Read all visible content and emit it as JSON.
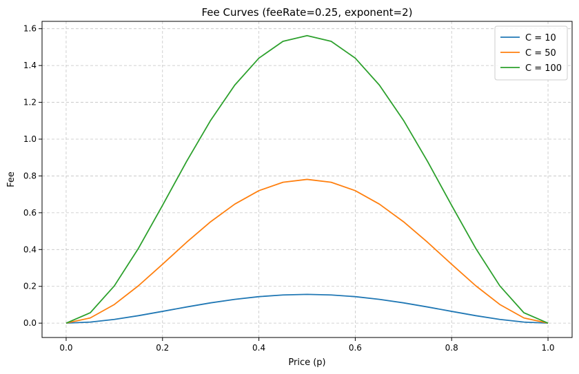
{
  "chart_data": {
    "type": "line",
    "title": "Fee Curves (feeRate=0.25, exponent=2)",
    "xlabel": "Price (p)",
    "ylabel": "Fee",
    "xlim": [
      -0.05,
      1.05
    ],
    "ylim": [
      -0.078,
      1.64
    ],
    "xticks": [
      0.0,
      0.2,
      0.4,
      0.6,
      0.8,
      1.0
    ],
    "xtick_labels": [
      "0.0",
      "0.2",
      "0.4",
      "0.6",
      "0.8",
      "1.0"
    ],
    "yticks": [
      0.0,
      0.2,
      0.4,
      0.6,
      0.8,
      1.0,
      1.2,
      1.4,
      1.6
    ],
    "ytick_labels": [
      "0.0",
      "0.2",
      "0.4",
      "0.6",
      "0.8",
      "1.0",
      "1.2",
      "1.4",
      "1.6"
    ],
    "grid": true,
    "legend_position": "top-right",
    "x": [
      0.0,
      0.05,
      0.1,
      0.15,
      0.2,
      0.25,
      0.3,
      0.35,
      0.4,
      0.45,
      0.5,
      0.55,
      0.6,
      0.65,
      0.7,
      0.75,
      0.8,
      0.85,
      0.9,
      0.95,
      1.0
    ],
    "series": [
      {
        "name": "C = 10",
        "color": "#1f77b4",
        "values": [
          0.0,
          0.0056,
          0.0203,
          0.0406,
          0.064,
          0.0879,
          0.1103,
          0.1294,
          0.144,
          0.1531,
          0.1563,
          0.1531,
          0.144,
          0.1294,
          0.1103,
          0.0879,
          0.064,
          0.0406,
          0.0203,
          0.0056,
          0.0
        ]
      },
      {
        "name": "C = 50",
        "color": "#ff7f0e",
        "values": [
          0.0,
          0.0282,
          0.1013,
          0.2032,
          0.32,
          0.4395,
          0.5513,
          0.647,
          0.72,
          0.7657,
          0.7813,
          0.7657,
          0.72,
          0.647,
          0.5513,
          0.4395,
          0.32,
          0.2032,
          0.1013,
          0.0282,
          0.0
        ]
      },
      {
        "name": "C = 100",
        "color": "#2ca02c",
        "values": [
          0.0,
          0.0564,
          0.2025,
          0.4064,
          0.64,
          0.8789,
          1.1025,
          1.2939,
          1.44,
          1.5314,
          1.5625,
          1.5314,
          1.44,
          1.2939,
          1.1025,
          0.8789,
          0.64,
          0.4064,
          0.2025,
          0.0564,
          0.0
        ]
      }
    ]
  }
}
